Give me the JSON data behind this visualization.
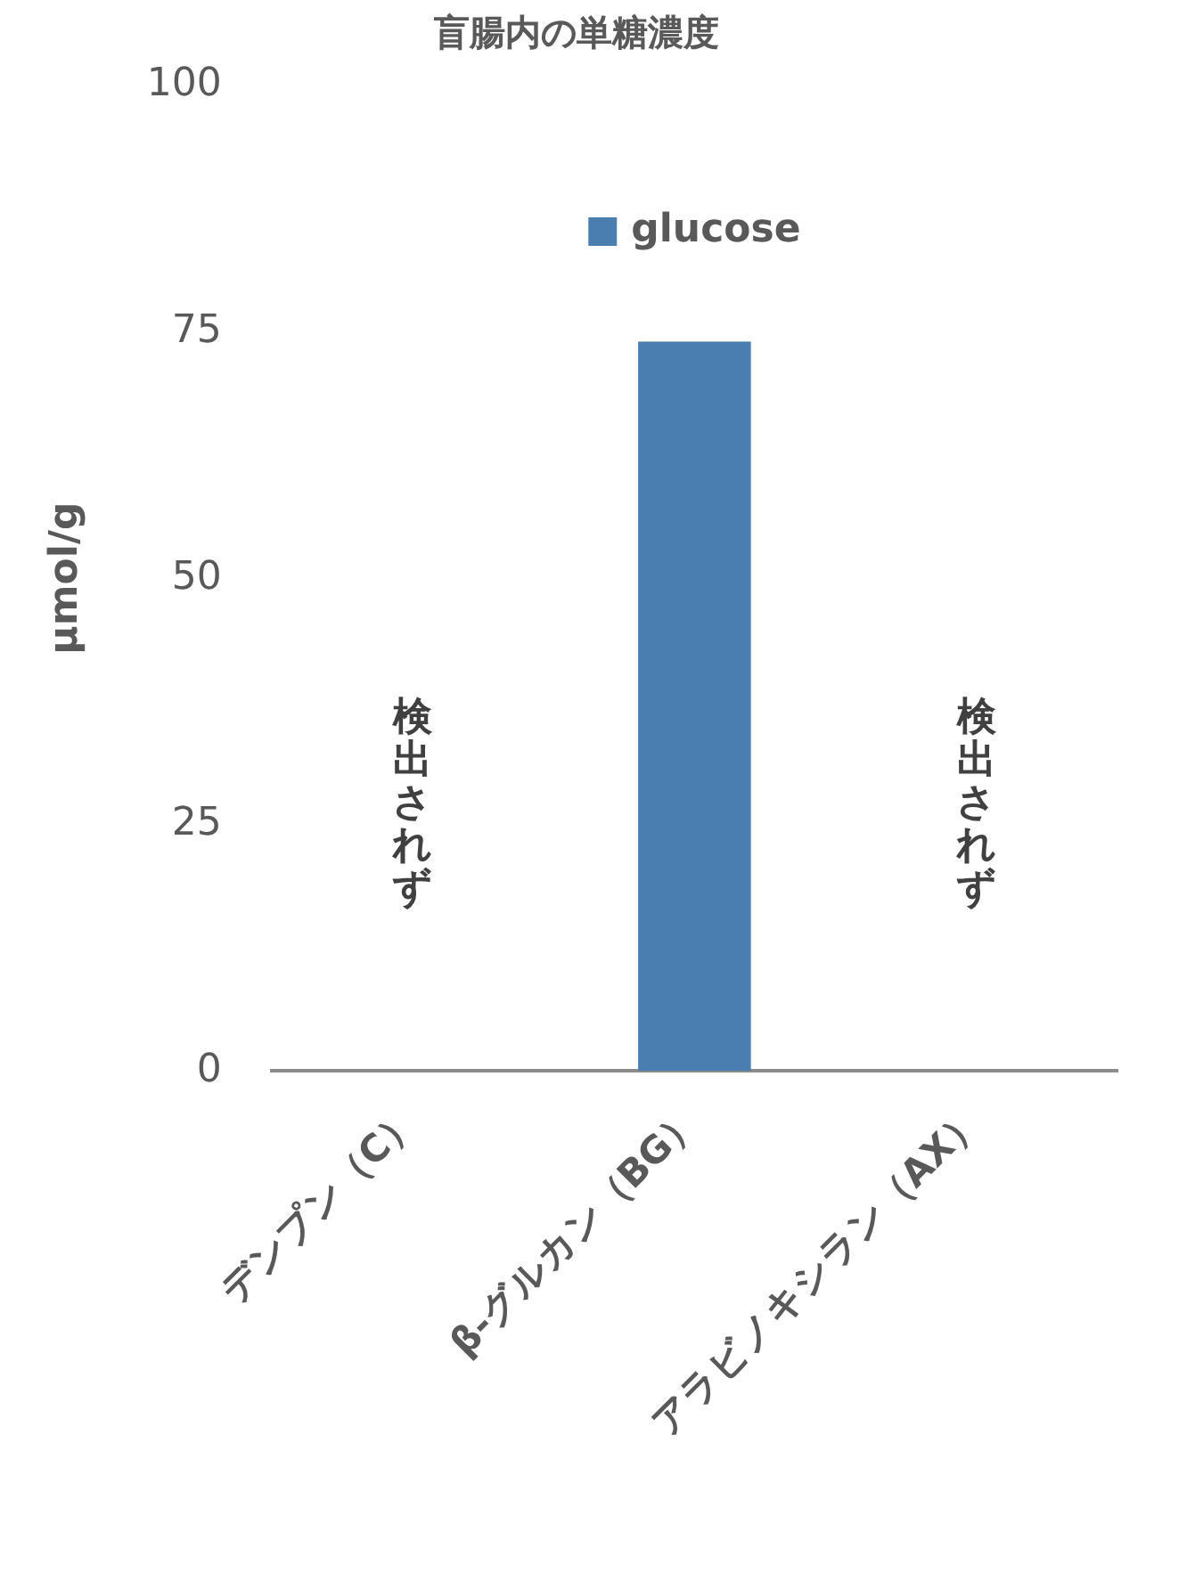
{
  "chart_data": {
    "type": "bar",
    "title": "盲腸内の単糖濃度",
    "ylabel": "μmol/g",
    "categories": [
      "デンプン（C）",
      "β-グルカン（BG）",
      "アラビノキシラン（AX）"
    ],
    "series": [
      {
        "name": "glucose",
        "color": "#4a7eb0",
        "values": [
          null,
          74,
          null
        ]
      }
    ],
    "ylim": [
      0,
      100
    ],
    "yticks": [
      0,
      25,
      50,
      75,
      100
    ],
    "grid": false,
    "legend": "top",
    "annotations": [
      "検出されず",
      "検出されず"
    ]
  }
}
